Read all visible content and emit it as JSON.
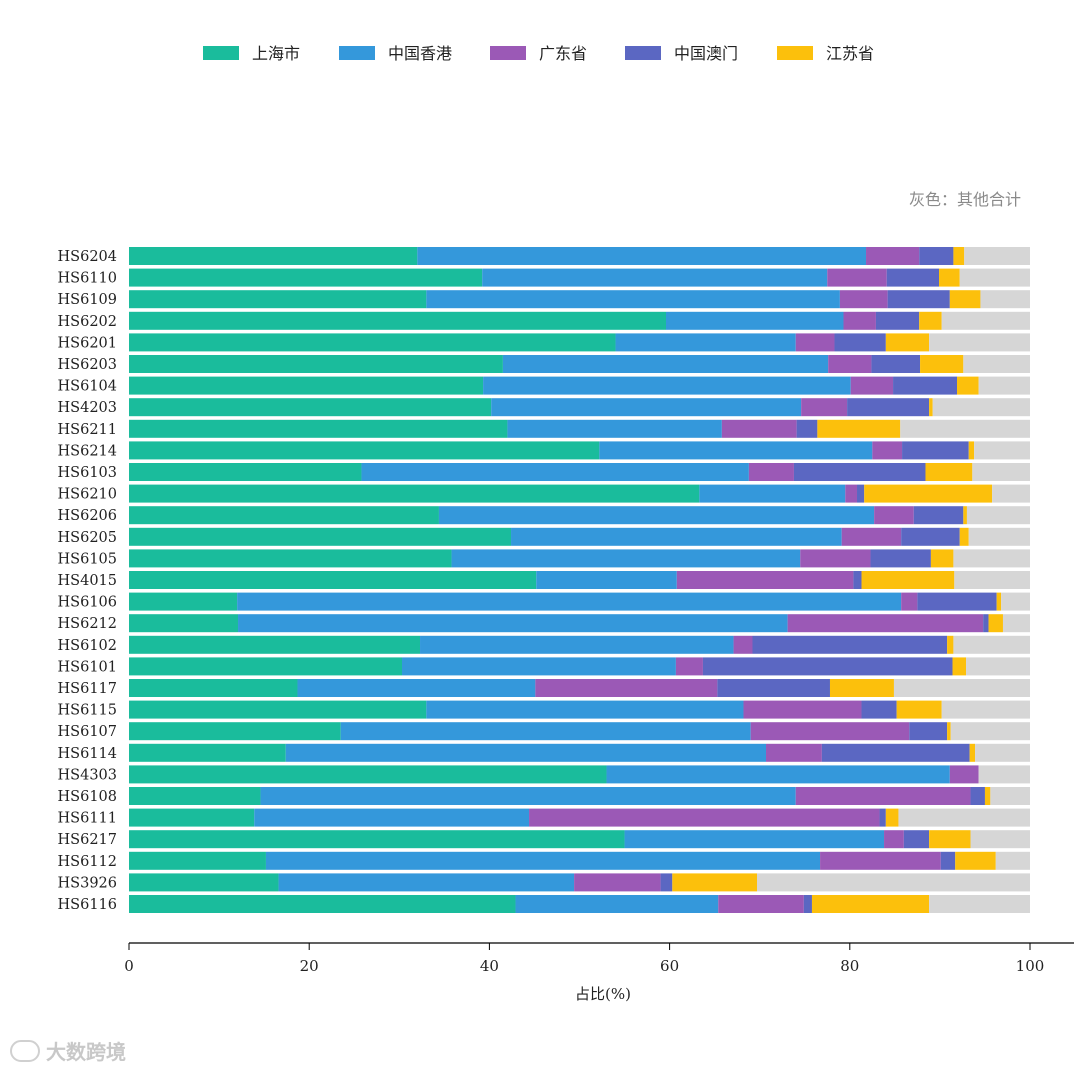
{
  "chart_data": {
    "type": "bar",
    "orientation": "horizontal",
    "stacked": true,
    "title": "",
    "xlabel": "占比(%)",
    "ylabel": "",
    "xlim": [
      0,
      100
    ],
    "xticks": [
      0,
      20,
      40,
      60,
      80,
      100
    ],
    "note": "灰色：其他合计",
    "legend_position": "top",
    "categories": [
      "HS6204",
      "HS6110",
      "HS6109",
      "HS6202",
      "HS6201",
      "HS6203",
      "HS6104",
      "HS4203",
      "HS6211",
      "HS6214",
      "HS6103",
      "HS6210",
      "HS6206",
      "HS6205",
      "HS6105",
      "HS4015",
      "HS6106",
      "HS6212",
      "HS6102",
      "HS6101",
      "HS6117",
      "HS6115",
      "HS6107",
      "HS6114",
      "HS4303",
      "HS6108",
      "HS6111",
      "HS6217",
      "HS6112",
      "HS3926",
      "HS6116"
    ],
    "series": [
      {
        "name": "上海市",
        "color": "#1abc9c",
        "values": [
          32.0,
          39.2,
          33.0,
          59.6,
          54.0,
          41.5,
          39.3,
          40.2,
          42.0,
          52.2,
          25.8,
          63.3,
          34.4,
          42.4,
          35.8,
          45.2,
          12.0,
          12.1,
          32.3,
          30.3,
          18.7,
          33.0,
          23.5,
          17.4,
          53.0,
          14.6,
          13.9,
          55.0,
          15.2,
          16.6,
          42.9
        ]
      },
      {
        "name": "中国香港",
        "color": "#3498db",
        "values": [
          49.8,
          38.3,
          45.9,
          19.7,
          20.0,
          36.1,
          40.8,
          34.4,
          23.8,
          30.3,
          43.0,
          16.2,
          48.3,
          36.7,
          38.7,
          15.6,
          73.7,
          61.0,
          34.8,
          30.4,
          26.4,
          35.2,
          45.5,
          53.3,
          38.1,
          59.4,
          30.5,
          28.8,
          61.5,
          32.8,
          22.5
        ]
      },
      {
        "name": "广东省",
        "color": "#9b59b6",
        "values": [
          5.9,
          6.6,
          5.3,
          3.6,
          4.3,
          4.8,
          4.7,
          5.1,
          8.3,
          3.3,
          5.0,
          1.3,
          4.4,
          6.6,
          7.8,
          19.6,
          1.8,
          21.7,
          2.1,
          3.0,
          20.2,
          13.1,
          17.6,
          6.2,
          3.2,
          19.4,
          38.9,
          2.2,
          13.4,
          9.6,
          9.5
        ]
      },
      {
        "name": "中国澳门",
        "color": "#5b67c2",
        "values": [
          3.8,
          5.8,
          6.9,
          4.8,
          5.7,
          5.4,
          7.1,
          9.1,
          2.3,
          7.4,
          14.6,
          0.8,
          5.5,
          6.5,
          6.7,
          0.9,
          8.8,
          0.6,
          21.6,
          27.7,
          12.5,
          3.9,
          4.2,
          16.4,
          0.0,
          1.6,
          0.7,
          2.8,
          1.6,
          1.3,
          0.9
        ]
      },
      {
        "name": "江苏省",
        "color": "#fcc00c",
        "values": [
          1.2,
          2.3,
          3.4,
          2.5,
          4.8,
          4.8,
          2.4,
          0.4,
          9.2,
          0.6,
          5.2,
          14.2,
          0.4,
          1.0,
          2.5,
          10.3,
          0.5,
          1.6,
          0.7,
          1.5,
          7.1,
          5.0,
          0.4,
          0.6,
          0.0,
          0.6,
          1.4,
          4.6,
          4.5,
          9.4,
          13.0
        ]
      }
    ],
    "other": {
      "name": "其他合计",
      "color": "#d6d6d6"
    }
  }
}
